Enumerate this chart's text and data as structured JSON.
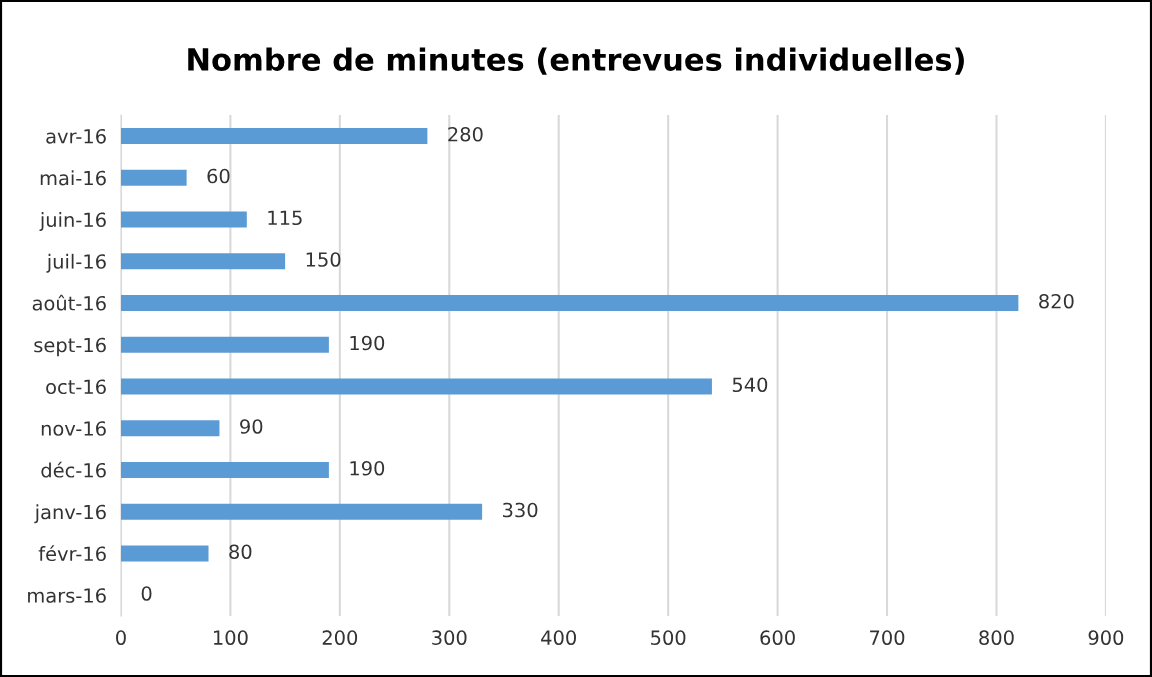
{
  "chart_data": {
    "type": "bar",
    "orientation": "horizontal",
    "title": "Nombre de minutes (entrevues individuelles)",
    "categories": [
      "avr-16",
      "mai-16",
      "juin-16",
      "juil-16",
      "août-16",
      "sept-16",
      "oct-16",
      "nov-16",
      "déc-16",
      "janv-16",
      "févr-16",
      "mars-16"
    ],
    "values": [
      280,
      60,
      115,
      150,
      820,
      190,
      540,
      90,
      190,
      330,
      80,
      0
    ],
    "color": "#5b9bd5",
    "data_labels": true,
    "grid": "x",
    "xlim": [
      0,
      900
    ],
    "xticks": [
      0,
      100,
      200,
      300,
      400,
      500,
      600,
      700,
      800,
      900
    ]
  }
}
